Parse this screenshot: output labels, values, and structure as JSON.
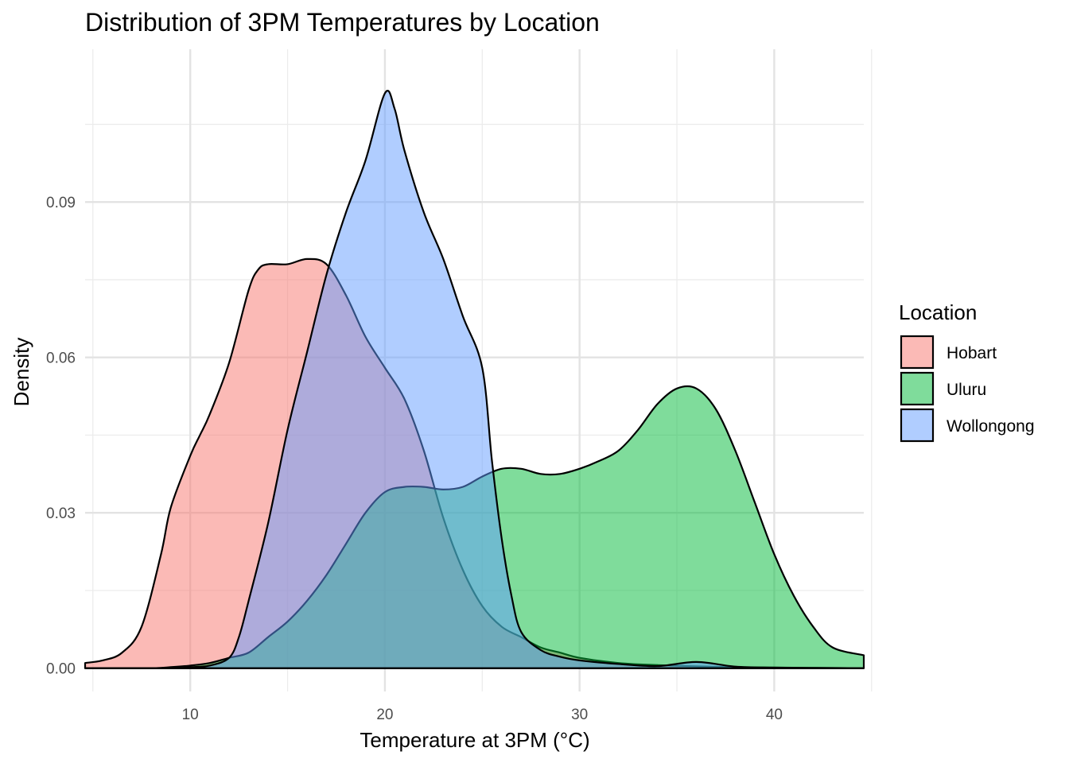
{
  "chart_data": {
    "type": "area",
    "title": "Distribution of 3PM Temperatures by Location",
    "xlabel": "Temperature at 3PM (°C)",
    "ylabel": "Density",
    "xlim": [
      4.6,
      44.6
    ],
    "ylim": [
      -0.0045,
      0.1195
    ],
    "x_ticks": [
      10,
      20,
      30,
      40
    ],
    "x_tick_labels": [
      "10",
      "20",
      "30",
      "40"
    ],
    "x_minor_ticks": [
      5,
      15,
      25,
      35,
      45
    ],
    "y_ticks": [
      0.0,
      0.03,
      0.06,
      0.09
    ],
    "y_tick_labels": [
      "0.00",
      "0.03",
      "0.06",
      "0.09"
    ],
    "y_minor_ticks": [
      0.015,
      0.045,
      0.075,
      0.105
    ],
    "grid": true,
    "fill_opacity": 0.5,
    "legend": {
      "title": "Location",
      "position": "right"
    },
    "series": [
      {
        "name": "Hobart",
        "color": "#F8766D",
        "points": [
          [
            4.6,
            0.001
          ],
          [
            5.5,
            0.0015
          ],
          [
            6.5,
            0.003
          ],
          [
            7.5,
            0.008
          ],
          [
            8.5,
            0.022
          ],
          [
            9.0,
            0.031
          ],
          [
            10.0,
            0.041
          ],
          [
            10.5,
            0.045
          ],
          [
            11.0,
            0.049
          ],
          [
            12.0,
            0.059
          ],
          [
            13.0,
            0.073
          ],
          [
            13.5,
            0.077
          ],
          [
            14.0,
            0.078
          ],
          [
            15.0,
            0.078
          ],
          [
            16.0,
            0.079
          ],
          [
            17.0,
            0.078
          ],
          [
            18.0,
            0.072
          ],
          [
            19.0,
            0.064
          ],
          [
            20.0,
            0.058
          ],
          [
            21.0,
            0.052
          ],
          [
            22.0,
            0.042
          ],
          [
            23.0,
            0.029
          ],
          [
            24.0,
            0.019
          ],
          [
            25.0,
            0.012
          ],
          [
            26.0,
            0.008
          ],
          [
            27.0,
            0.006
          ],
          [
            28.0,
            0.004
          ],
          [
            29.0,
            0.003
          ],
          [
            30.0,
            0.002
          ],
          [
            32.0,
            0.001
          ],
          [
            34.0,
            0.0006
          ],
          [
            38.0,
            0.0002
          ],
          [
            44.6,
            0.0
          ]
        ]
      },
      {
        "name": "Uluru",
        "color": "#00BA38",
        "points": [
          [
            4.6,
            0.0
          ],
          [
            8.0,
            0.0
          ],
          [
            9.0,
            0.0002
          ],
          [
            10.0,
            0.0005
          ],
          [
            11.0,
            0.001
          ],
          [
            12.0,
            0.002
          ],
          [
            13.0,
            0.003
          ],
          [
            14.0,
            0.006
          ],
          [
            15.0,
            0.009
          ],
          [
            16.0,
            0.013
          ],
          [
            17.0,
            0.018
          ],
          [
            18.0,
            0.024
          ],
          [
            19.0,
            0.03
          ],
          [
            20.0,
            0.034
          ],
          [
            21.0,
            0.035
          ],
          [
            22.0,
            0.035
          ],
          [
            23.0,
            0.0345
          ],
          [
            24.0,
            0.035
          ],
          [
            25.0,
            0.037
          ],
          [
            26.0,
            0.0385
          ],
          [
            27.0,
            0.0385
          ],
          [
            28.0,
            0.0375
          ],
          [
            29.0,
            0.0375
          ],
          [
            30.0,
            0.0385
          ],
          [
            31.0,
            0.04
          ],
          [
            32.0,
            0.042
          ],
          [
            33.0,
            0.046
          ],
          [
            34.0,
            0.051
          ],
          [
            35.0,
            0.054
          ],
          [
            36.0,
            0.054
          ],
          [
            37.0,
            0.05
          ],
          [
            38.0,
            0.042
          ],
          [
            39.0,
            0.032
          ],
          [
            40.0,
            0.022
          ],
          [
            41.0,
            0.014
          ],
          [
            42.0,
            0.008
          ],
          [
            43.0,
            0.004
          ],
          [
            44.6,
            0.0025
          ]
        ]
      },
      {
        "name": "Wollongong",
        "color": "#619CFF",
        "points": [
          [
            4.6,
            0.0
          ],
          [
            9.0,
            0.0
          ],
          [
            10.0,
            0.0002
          ],
          [
            11.0,
            0.0005
          ],
          [
            12.0,
            0.002
          ],
          [
            12.5,
            0.006
          ],
          [
            13.0,
            0.013
          ],
          [
            14.0,
            0.028
          ],
          [
            15.0,
            0.046
          ],
          [
            16.0,
            0.061
          ],
          [
            17.0,
            0.076
          ],
          [
            18.0,
            0.088
          ],
          [
            19.0,
            0.098
          ],
          [
            20.0,
            0.111
          ],
          [
            20.5,
            0.108
          ],
          [
            21.0,
            0.1
          ],
          [
            22.0,
            0.088
          ],
          [
            23.0,
            0.079
          ],
          [
            24.0,
            0.068
          ],
          [
            25.0,
            0.058
          ],
          [
            25.5,
            0.04
          ],
          [
            26.0,
            0.025
          ],
          [
            26.5,
            0.014
          ],
          [
            27.0,
            0.007
          ],
          [
            28.0,
            0.0035
          ],
          [
            29.0,
            0.0022
          ],
          [
            30.0,
            0.0015
          ],
          [
            32.0,
            0.0008
          ],
          [
            34.0,
            0.0004
          ],
          [
            36.0,
            0.0012
          ],
          [
            38.0,
            0.0003
          ],
          [
            40.0,
            0.0001
          ],
          [
            44.6,
            0.0
          ]
        ]
      }
    ]
  }
}
